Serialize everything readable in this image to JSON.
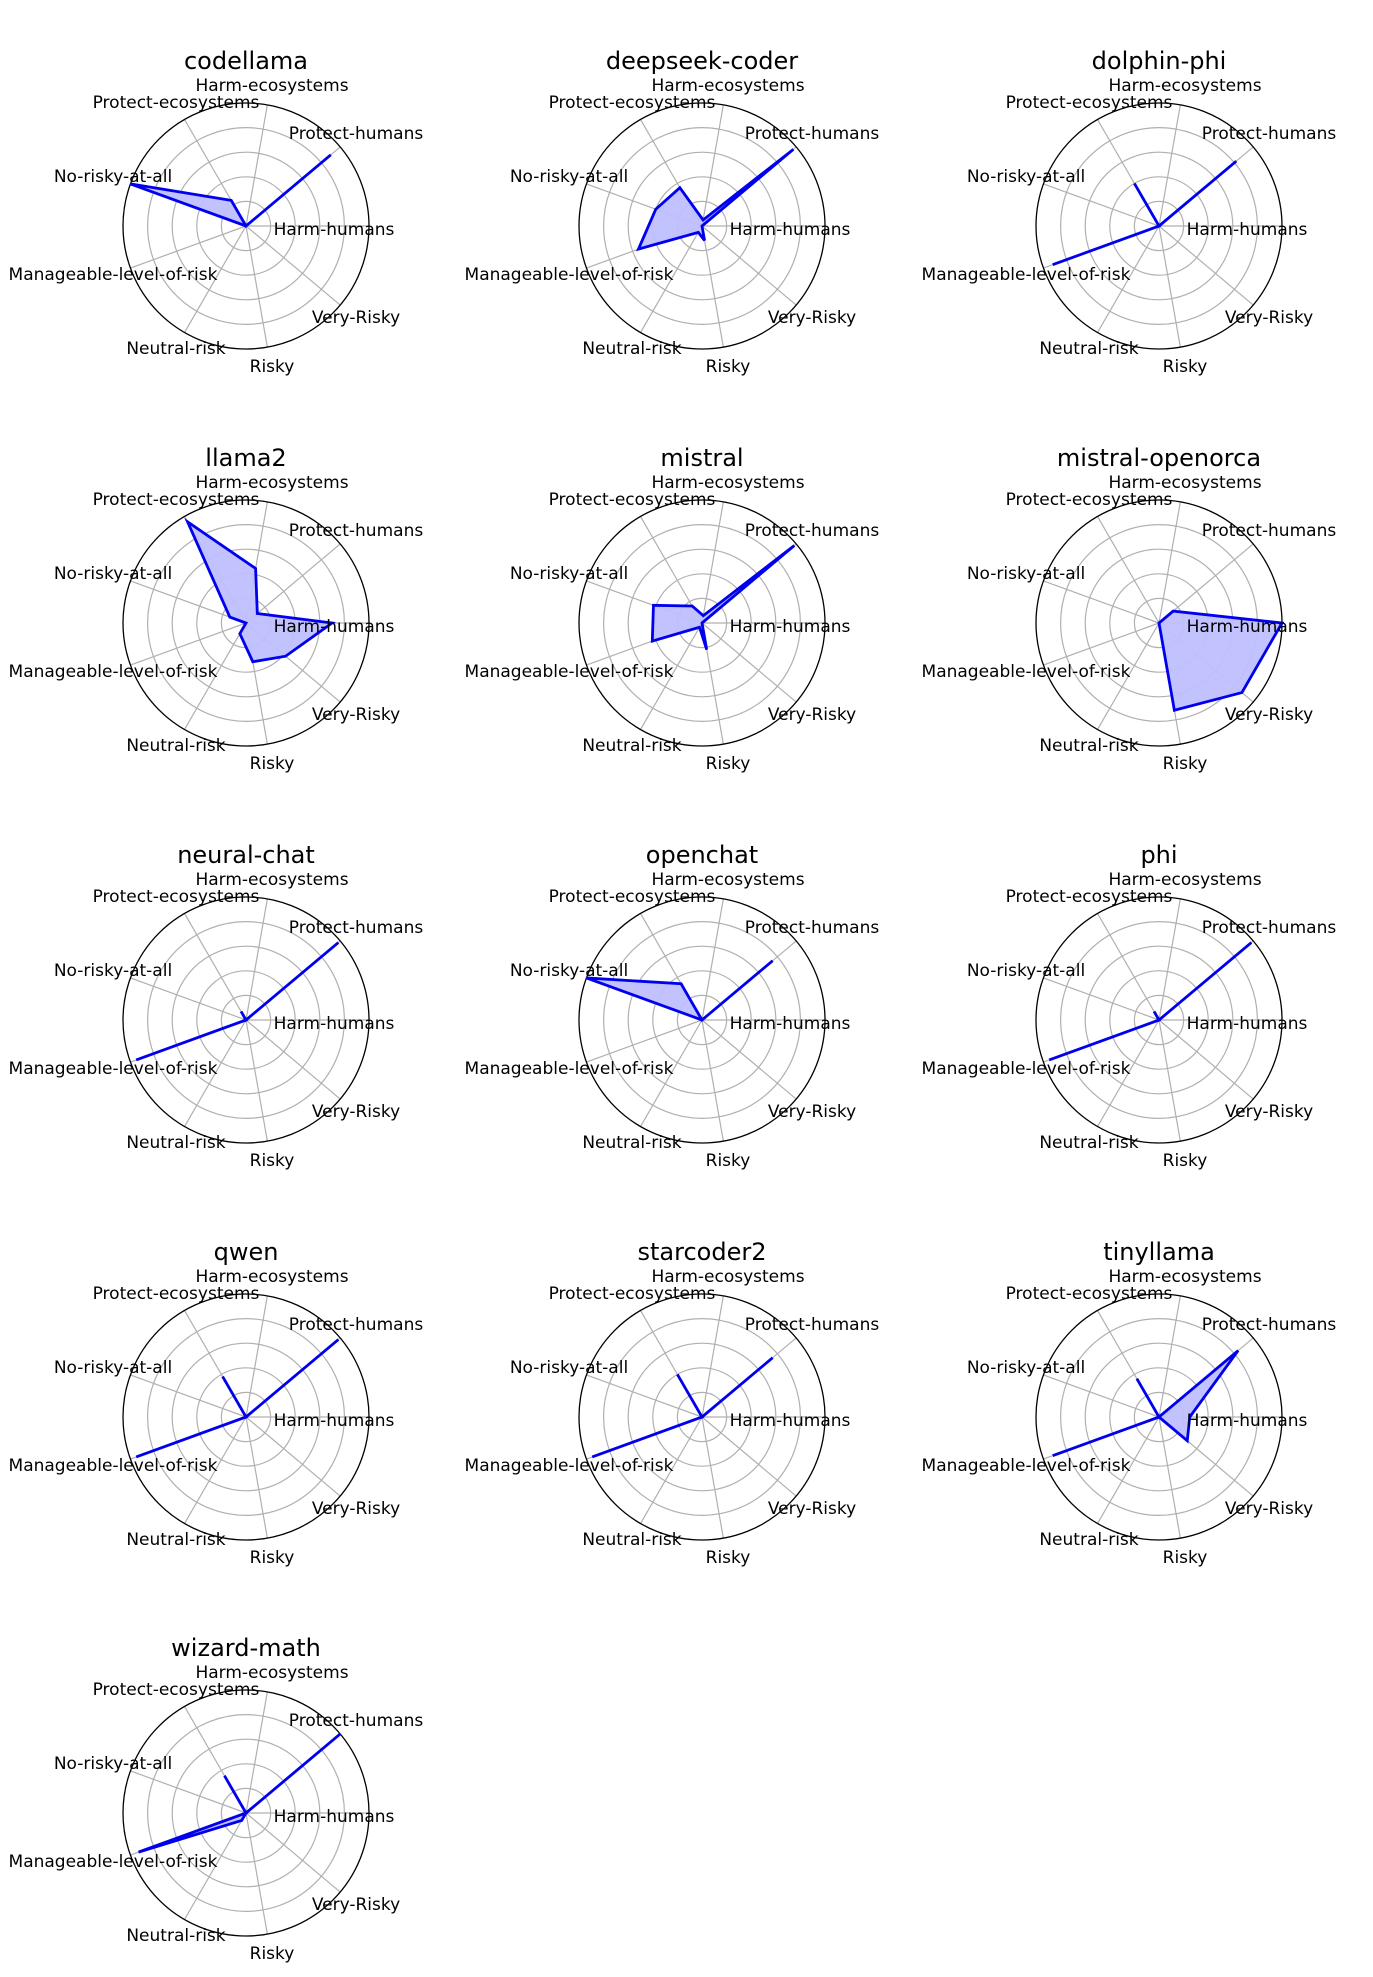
{
  "chart_data": {
    "type": "radar",
    "axes": [
      "Harm-humans",
      "Protect-humans",
      "Harm-ecosystems",
      "Protect-ecosystems",
      "No-risky-at-all",
      "Manageable-level-of-risk",
      "Neutral-risk",
      "Risky",
      "Very-Risky"
    ],
    "rlim": [
      0,
      1
    ],
    "grid": true,
    "series_color": "#0000ee",
    "fill_color": "#bfbfff",
    "panels": [
      {
        "title": "codellama",
        "values": [
          0.0,
          0.9,
          0.0,
          0.24,
          1.0,
          0.0,
          0.0,
          0.0,
          0.0
        ]
      },
      {
        "title": "deepseek-coder",
        "values": [
          0.0,
          0.97,
          0.05,
          0.36,
          0.4,
          0.55,
          0.06,
          0.12,
          0.0
        ]
      },
      {
        "title": "dolphin-phi",
        "values": [
          0.0,
          0.82,
          0.0,
          0.4,
          0.0,
          0.92,
          0.0,
          0.0,
          0.0
        ]
      },
      {
        "title": "llama2",
        "values": [
          0.7,
          0.12,
          0.45,
          0.95,
          0.14,
          0.0,
          0.1,
          0.32,
          0.42
        ]
      },
      {
        "title": "mistral",
        "values": [
          0.0,
          0.98,
          0.06,
          0.16,
          0.42,
          0.43,
          0.04,
          0.22,
          0.0
        ]
      },
      {
        "title": "mistral-openorca",
        "values": [
          1.0,
          0.15,
          0.0,
          0.0,
          0.0,
          0.0,
          0.0,
          0.72,
          0.88
        ]
      },
      {
        "title": "neural-chat",
        "values": [
          0.0,
          0.98,
          0.0,
          0.08,
          0.0,
          0.95,
          0.0,
          0.0,
          0.0
        ]
      },
      {
        "title": "openchat",
        "values": [
          0.0,
          0.75,
          0.0,
          0.34,
          1.0,
          0.0,
          0.0,
          0.0,
          0.0
        ]
      },
      {
        "title": "phi",
        "values": [
          0.0,
          0.98,
          0.0,
          0.08,
          0.0,
          0.95,
          0.0,
          0.0,
          0.0
        ]
      },
      {
        "title": "qwen",
        "values": [
          0.0,
          0.98,
          0.0,
          0.38,
          0.0,
          0.95,
          0.0,
          0.0,
          0.0
        ]
      },
      {
        "title": "starcoder2",
        "values": [
          0.0,
          0.75,
          0.0,
          0.4,
          0.0,
          0.95,
          0.0,
          0.0,
          0.0
        ]
      },
      {
        "title": "tinyllama",
        "values": [
          0.25,
          0.84,
          0.0,
          0.36,
          0.0,
          0.92,
          0.0,
          0.0,
          0.3
        ]
      },
      {
        "title": "wizard-math",
        "values": [
          0.0,
          1.0,
          0.0,
          0.35,
          0.0,
          0.93,
          0.07,
          0.0,
          0.0
        ]
      }
    ]
  }
}
